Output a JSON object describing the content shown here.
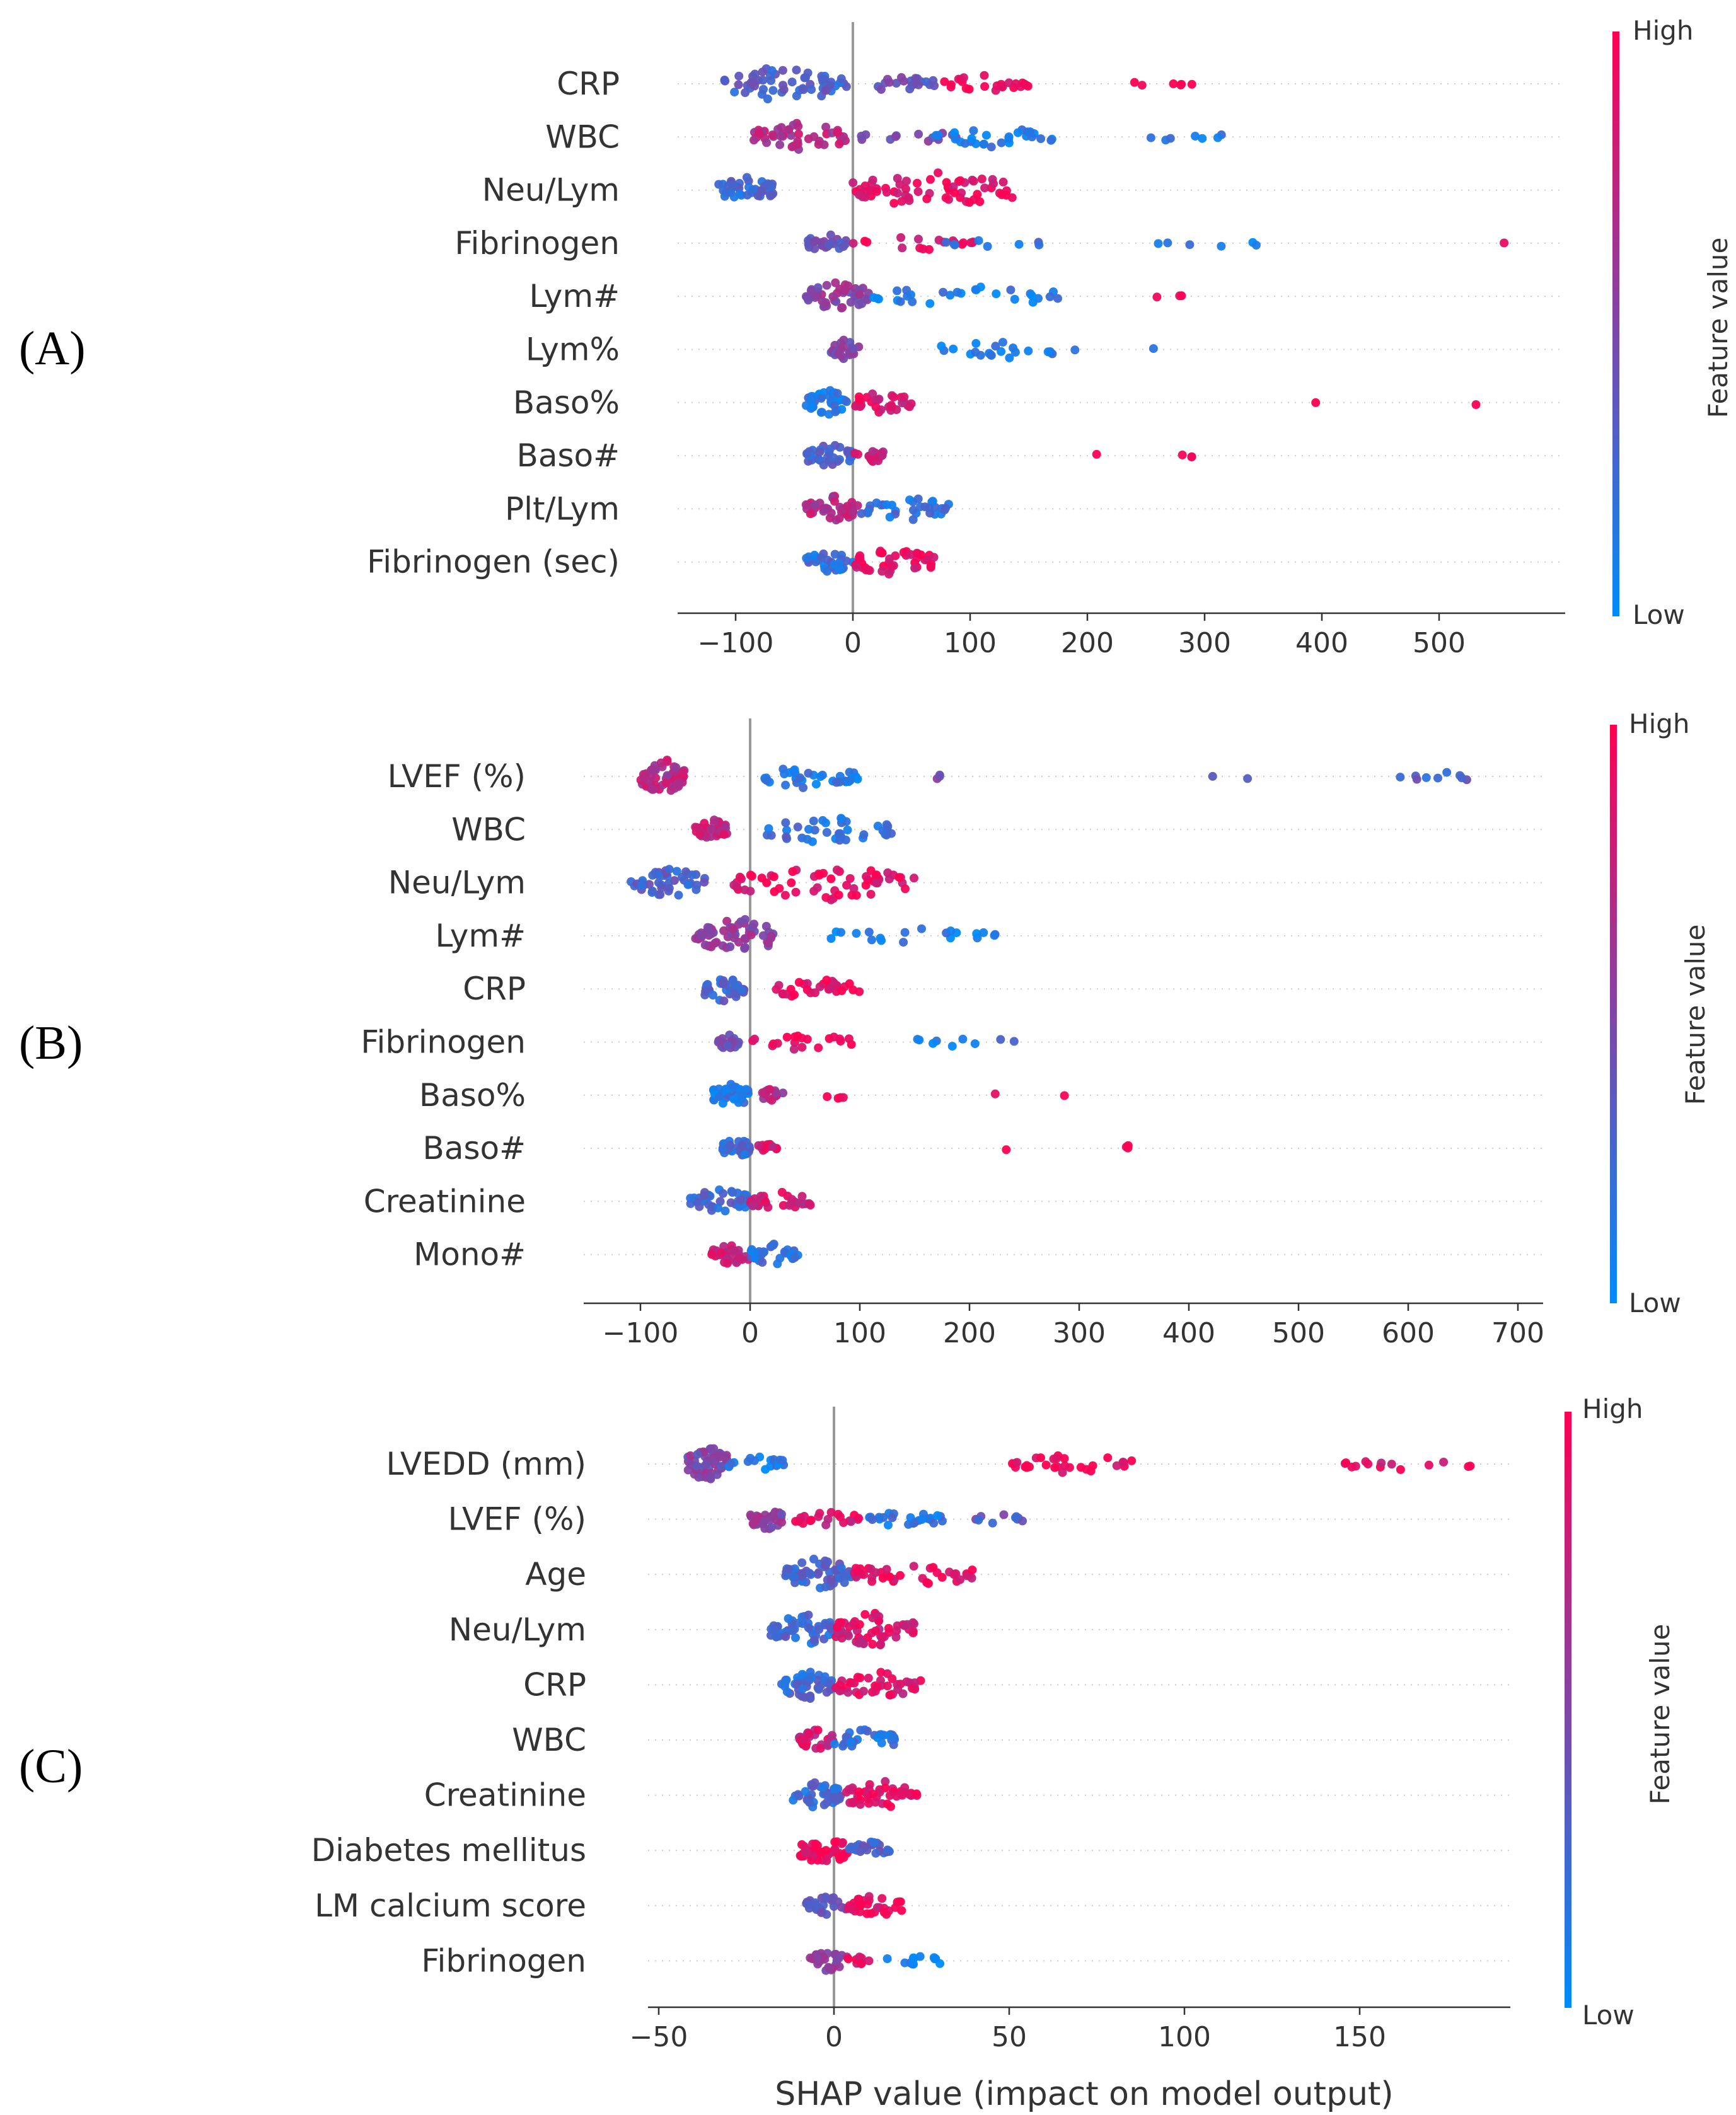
{
  "figure": {
    "panel_labels": [
      "(A)",
      "(B)",
      "(C)"
    ],
    "xlabel": "SHAP value (impact on model output)",
    "colorbar": {
      "high": "High",
      "low": "Low",
      "title": "Feature value"
    },
    "colors": {
      "high": "#ff0052",
      "low": "#008bfb",
      "zero_line": "#999999",
      "grid": "#cccccc",
      "text": "#333333"
    }
  },
  "chart_data": [
    {
      "type": "scatter",
      "subtype": "shap-beeswarm",
      "panel": "(A)",
      "features": [
        "CRP",
        "WBC",
        "Neu/Lym",
        "Fibrinogen",
        "Lym#",
        "Lym%",
        "Baso%",
        "Baso#",
        "Plt/Lym",
        "Fibrinogen (sec)"
      ],
      "xticks": [
        -100,
        0,
        100,
        200,
        300,
        400,
        500
      ],
      "xlim": [
        -150,
        610
      ],
      "clusters": [
        [
          [
            -110,
            -5,
            0.3,
            60
          ],
          [
            5,
            70,
            0.4,
            20
          ],
          [
            75,
            150,
            0.95,
            25
          ],
          [
            240,
            290,
            1.0,
            6
          ]
        ],
        [
          [
            -85,
            -5,
            0.7,
            45
          ],
          [
            5,
            90,
            0.5,
            14
          ],
          [
            70,
            170,
            0.1,
            28
          ],
          [
            245,
            320,
            0.1,
            7
          ]
        ],
        [
          [
            -115,
            -65,
            0.25,
            40
          ],
          [
            0,
            140,
            0.9,
            65
          ]
        ],
        [
          [
            -40,
            -5,
            0.4,
            25
          ],
          [
            0,
            110,
            0.9,
            18
          ],
          [
            55,
            165,
            0.2,
            8
          ],
          [
            255,
            365,
            0.1,
            6
          ],
          [
            555,
            560,
            1.0,
            1
          ]
        ],
        [
          [
            -40,
            15,
            0.55,
            45
          ],
          [
            15,
            180,
            0.1,
            28
          ],
          [
            255,
            295,
            1.0,
            3
          ]
        ],
        [
          [
            -20,
            5,
            0.5,
            25
          ],
          [
            75,
            190,
            0.1,
            22
          ],
          [
            255,
            260,
            0.1,
            1
          ]
        ],
        [
          [
            -40,
            -5,
            0.15,
            40
          ],
          [
            0,
            50,
            0.85,
            30
          ],
          [
            390,
            395,
            1.0,
            1
          ],
          [
            530,
            535,
            1.0,
            1
          ]
        ],
        [
          [
            -40,
            0,
            0.3,
            35
          ],
          [
            0,
            30,
            0.75,
            16
          ],
          [
            205,
            210,
            1.0,
            1
          ],
          [
            280,
            290,
            1.0,
            3
          ]
        ],
        [
          [
            -40,
            5,
            0.7,
            40
          ],
          [
            5,
            90,
            0.2,
            32
          ]
        ],
        [
          [
            -40,
            0,
            0.2,
            30
          ],
          [
            0,
            70,
            0.9,
            42
          ]
        ]
      ]
    },
    {
      "type": "scatter",
      "subtype": "shap-beeswarm",
      "panel": "(B)",
      "features": [
        "LVEF (%)",
        "WBC",
        "Neu/Lym",
        "Lym#",
        "CRP",
        "Fibrinogen",
        "Baso%",
        "Baso#",
        "Creatinine",
        "Mono#"
      ],
      "xticks": [
        -100,
        0,
        100,
        200,
        300,
        400,
        500,
        600,
        700
      ],
      "xlim": [
        -150,
        720
      ],
      "clusters": [
        [
          [
            -100,
            -60,
            0.7,
            60
          ],
          [
            5,
            100,
            0.15,
            35
          ],
          [
            160,
            175,
            0.4,
            3
          ],
          [
            415,
            480,
            0.4,
            2
          ],
          [
            580,
            680,
            0.3,
            9
          ]
        ],
        [
          [
            -50,
            -20,
            0.75,
            30
          ],
          [
            0,
            130,
            0.2,
            40
          ]
        ],
        [
          [
            -110,
            -40,
            0.3,
            45
          ],
          [
            -15,
            150,
            0.9,
            60
          ]
        ],
        [
          [
            -50,
            25,
            0.55,
            60
          ],
          [
            60,
            230,
            0.1,
            20
          ]
        ],
        [
          [
            -45,
            -5,
            0.3,
            35
          ],
          [
            20,
            100,
            0.9,
            30
          ]
        ],
        [
          [
            -30,
            -10,
            0.45,
            20
          ],
          [
            0,
            95,
            0.9,
            20
          ],
          [
            130,
            250,
            0.15,
            9
          ]
        ],
        [
          [
            -35,
            0,
            0.15,
            40
          ],
          [
            10,
            30,
            0.7,
            15
          ],
          [
            65,
            90,
            1.0,
            4
          ],
          [
            220,
            225,
            1.0,
            1
          ],
          [
            285,
            290,
            1.0,
            1
          ]
        ],
        [
          [
            -25,
            0,
            0.25,
            30
          ],
          [
            5,
            25,
            0.85,
            12
          ],
          [
            230,
            235,
            1.0,
            1
          ],
          [
            340,
            350,
            1.0,
            3
          ]
        ],
        [
          [
            -55,
            0,
            0.25,
            40
          ],
          [
            0,
            55,
            0.8,
            28
          ]
        ],
        [
          [
            -35,
            0,
            0.8,
            30
          ],
          [
            0,
            45,
            0.2,
            32
          ]
        ]
      ]
    },
    {
      "type": "scatter",
      "subtype": "shap-beeswarm",
      "panel": "(C)",
      "features": [
        "LVEDD (mm)",
        "LVEF (%)",
        "Age",
        "Neu/Lym",
        "CRP",
        "WBC",
        "Creatinine",
        "Diabetes mellitus",
        "LM calcium score",
        "Fibrinogen"
      ],
      "xticks": [
        -50,
        0,
        50,
        100,
        150
      ],
      "xticklabels": [
        "−50",
        "0",
        "50",
        "100",
        "150"
      ],
      "xlim": [
        -52,
        192
      ],
      "clusters": [
        [
          [
            -42,
            -30,
            0.5,
            60
          ],
          [
            -30,
            -13,
            0.1,
            18
          ],
          [
            50,
            85,
            0.95,
            30
          ],
          [
            145,
            182,
            0.9,
            14
          ]
        ],
        [
          [
            -24,
            -14,
            0.55,
            30
          ],
          [
            -12,
            8,
            0.85,
            20
          ],
          [
            10,
            35,
            0.15,
            25
          ],
          [
            40,
            54,
            0.35,
            10
          ]
        ],
        [
          [
            -14,
            5,
            0.3,
            55
          ],
          [
            5,
            40,
            0.9,
            40
          ]
        ],
        [
          [
            -18,
            0,
            0.25,
            50
          ],
          [
            0,
            23,
            0.85,
            55
          ]
        ],
        [
          [
            -15,
            0,
            0.25,
            45
          ],
          [
            0,
            25,
            0.85,
            40
          ]
        ],
        [
          [
            -10,
            0,
            0.8,
            30
          ],
          [
            0,
            18,
            0.2,
            30
          ]
        ],
        [
          [
            -12,
            2,
            0.25,
            40
          ],
          [
            2,
            24,
            0.9,
            45
          ]
        ],
        [
          [
            -10,
            4,
            0.95,
            45
          ],
          [
            4,
            16,
            0.3,
            25
          ]
        ],
        [
          [
            -8,
            4,
            0.4,
            30
          ],
          [
            4,
            20,
            0.9,
            32
          ]
        ],
        [
          [
            -7,
            4,
            0.6,
            30
          ],
          [
            4,
            10,
            0.9,
            8
          ],
          [
            15,
            35,
            0.1,
            12
          ]
        ]
      ]
    }
  ]
}
